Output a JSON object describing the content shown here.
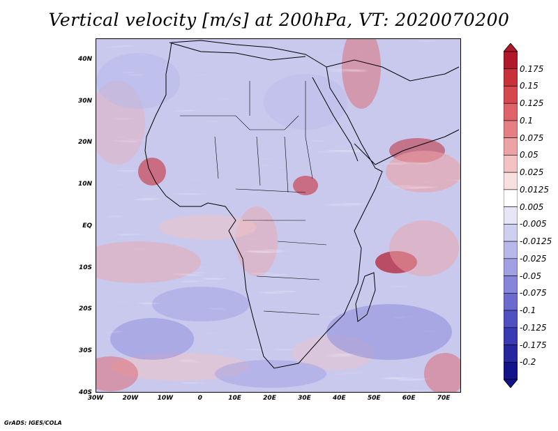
{
  "title": "Vertical velocity [m/s] at 200hPa, VT: 2020070200",
  "credit": "GrADS: IGES/COLA",
  "y_tick_labels": [
    "40N",
    "30N",
    "20N",
    "10N",
    "EQ",
    "10S",
    "20S",
    "30S",
    "40S"
  ],
  "x_tick_labels": [
    "30W",
    "20W",
    "10W",
    "0",
    "10E",
    "20E",
    "30E",
    "40E",
    "50E",
    "60E",
    "70E"
  ],
  "colorbar": {
    "labels": [
      "0.175",
      "0.15",
      "0.125",
      "0.1",
      "0.075",
      "0.05",
      "0.025",
      "0.0125",
      "0.005",
      "-0.005",
      "-0.0125",
      "-0.025",
      "-0.05",
      "-0.075",
      "-0.1",
      "-0.125",
      "-0.175",
      "-0.2"
    ],
    "colors": [
      "#b2182b",
      "#c8313a",
      "#d6484e",
      "#e0636a",
      "#e67f84",
      "#eda2a5",
      "#f3c3c4",
      "#f9e0e0",
      "#ffffff",
      "#e6e6f7",
      "#cfcff0",
      "#b8b8ea",
      "#a0a0e3",
      "#8585d9",
      "#6b6bcf",
      "#5050c2",
      "#3a3ab3",
      "#26269f",
      "#14148a"
    ],
    "max_color": "#b2182b",
    "min_color": "#14148a"
  },
  "map": {
    "lon_range": [
      -30,
      75
    ],
    "lat_range": [
      -40,
      45
    ],
    "field": "vertical velocity",
    "level": "200hPa",
    "valid_time": "2020070200"
  }
}
